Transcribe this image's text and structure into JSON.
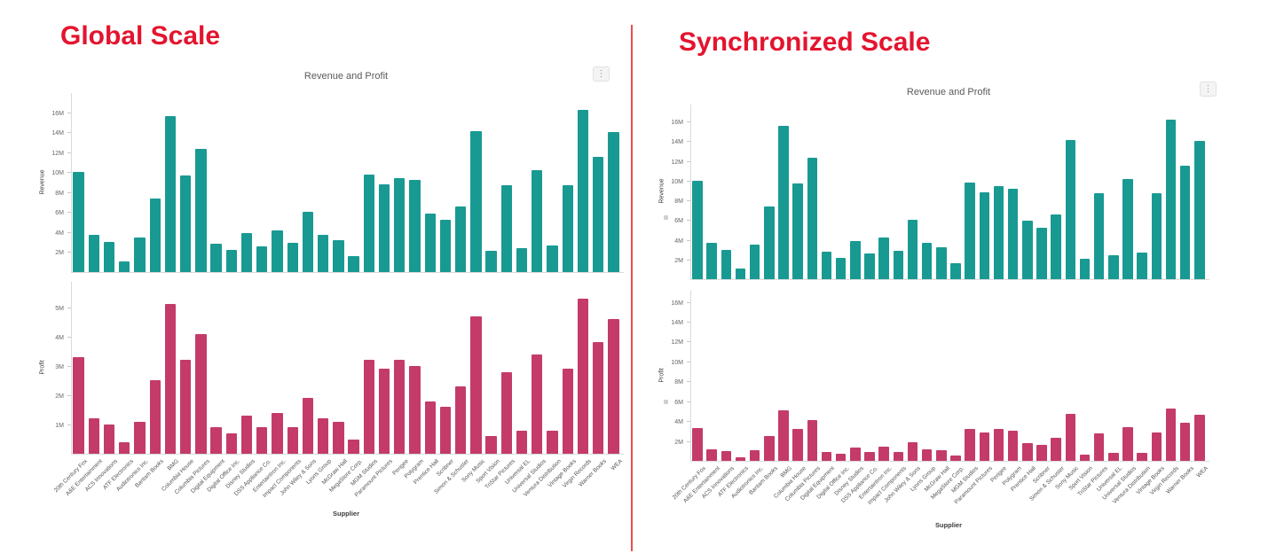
{
  "page": {
    "panels": [
      {
        "id": "global",
        "heading": "Global Scale"
      },
      {
        "id": "synchronized",
        "heading": "Synchronized Scale"
      }
    ]
  },
  "chart": {
    "menu_glyph": "⋮",
    "menu_icon": "kebab-menu-icon",
    "colors": {
      "revenue_bar": "#189a93",
      "profit_bar": "#c43b6a",
      "heading_red": "#e4142e",
      "divider_red": "#ec4c4c",
      "axis_line": "#dadada",
      "tick_text": "#666666"
    }
  },
  "chart_data": [
    {
      "panel": "Global Scale",
      "type": "bar",
      "title": "Revenue and Profit",
      "xlabel": "Supplier",
      "grid": false,
      "legend": "none",
      "categories": [
        "20th Century Fox",
        "A&E Entertainment",
        "ACS Innovations",
        "ATF Electronics",
        "Audiotronics Inc.",
        "Bantam Books",
        "BMG",
        "Columbia House",
        "Columbia Pictures",
        "Digital Equipment",
        "Digital Office Inc.",
        "Disney Studios",
        "DSS Appliance Co.",
        "Entertaintron Inc.",
        "Impact Components",
        "John Wiley & Sons",
        "Lyons Group",
        "McGraw Hall",
        "MegaStore Corp.",
        "MGM Studios",
        "Paramount Pictures",
        "Perigee",
        "Polygram",
        "Prentice Hall",
        "Scribner",
        "Simon & Schuster",
        "Sony Music",
        "Sport Vision",
        "TriStar Pictures",
        "Universal EL",
        "Universal Studios",
        "Ventura Distribution",
        "Vintage Books",
        "Virgin Records",
        "Warner Books",
        "WEA"
      ],
      "series": [
        {
          "name": "Revenue",
          "ylabel": "Revenue",
          "unit": "M",
          "ylim": [
            0,
            18
          ],
          "yticks": [
            "2M",
            "4M",
            "6M",
            "8M",
            "10M",
            "12M",
            "14M",
            "16M"
          ],
          "values": [
            10.0,
            3.7,
            3.0,
            1.1,
            3.5,
            7.4,
            15.6,
            9.7,
            12.3,
            2.8,
            2.2,
            3.9,
            2.6,
            4.2,
            2.9,
            6.0,
            3.7,
            3.2,
            1.6,
            9.8,
            8.8,
            9.4,
            9.2,
            5.9,
            5.2,
            6.6,
            14.1,
            2.1,
            8.7,
            2.4,
            10.2,
            2.7,
            8.7,
            16.2,
            11.5,
            14.0
          ]
        },
        {
          "name": "Profit",
          "ylabel": "Profit",
          "unit": "M",
          "ylim": [
            0,
            5.9
          ],
          "yticks": [
            "1M",
            "2M",
            "3M",
            "4M",
            "5M"
          ],
          "values": [
            3.3,
            1.2,
            1.0,
            0.4,
            1.1,
            2.5,
            5.1,
            3.2,
            4.1,
            0.9,
            0.7,
            1.3,
            0.9,
            1.4,
            0.9,
            1.9,
            1.2,
            1.1,
            0.5,
            3.2,
            2.9,
            3.2,
            3.0,
            1.8,
            1.6,
            2.3,
            4.7,
            0.6,
            2.8,
            0.8,
            3.4,
            0.8,
            2.9,
            5.3,
            3.8,
            4.6
          ]
        }
      ]
    },
    {
      "panel": "Synchronized Scale",
      "type": "bar",
      "title": "Revenue and Profit",
      "xlabel": "Supplier",
      "grid": false,
      "legend": "none",
      "synchronized": true,
      "categories": [
        "20th Century Fox",
        "A&E Entertainment",
        "ACS Innovations",
        "ATF Electronics",
        "Audiotronics Inc.",
        "Bantam Books",
        "BMG",
        "Columbia House",
        "Columbia Pictures",
        "Digital Equipment",
        "Digital Office Inc.",
        "Disney Studios",
        "DSS Appliance Co.",
        "Entertaintron Inc.",
        "Impact Components",
        "John Wiley & Sons",
        "Lyons Group",
        "McGraw Hall",
        "MegaStore Corp.",
        "MGM Studios",
        "Paramount Pictures",
        "Perigee",
        "Polygram",
        "Prentice Hall",
        "Scribner",
        "Simon & Schuster",
        "Sony Music",
        "Sport Vision",
        "TriStar Pictures",
        "Universal EL",
        "Universal Studios",
        "Ventura Distribution",
        "Vintage Books",
        "Virgin Records",
        "Warner Books",
        "WEA"
      ],
      "series": [
        {
          "name": "Revenue",
          "ylabel": "Revenue",
          "unit": "M",
          "ylim": [
            0,
            17.8
          ],
          "yticks": [
            "2M",
            "4M",
            "6M",
            "8M",
            "10M",
            "12M",
            "14M",
            "16M"
          ],
          "values": [
            10.0,
            3.7,
            3.0,
            1.1,
            3.5,
            7.4,
            15.6,
            9.7,
            12.3,
            2.8,
            2.2,
            3.9,
            2.6,
            4.2,
            2.9,
            6.0,
            3.7,
            3.2,
            1.6,
            9.8,
            8.8,
            9.4,
            9.2,
            5.9,
            5.2,
            6.6,
            14.1,
            2.1,
            8.7,
            2.4,
            10.2,
            2.7,
            8.7,
            16.2,
            11.5,
            14.0
          ]
        },
        {
          "name": "Profit",
          "ylabel": "Profit",
          "unit": "M",
          "ylim": [
            0,
            17.2
          ],
          "yticks": [
            "2M",
            "4M",
            "6M",
            "8M",
            "10M",
            "12M",
            "14M",
            "16M"
          ],
          "values": [
            3.3,
            1.2,
            1.0,
            0.4,
            1.1,
            2.5,
            5.1,
            3.2,
            4.1,
            0.9,
            0.7,
            1.3,
            0.9,
            1.4,
            0.9,
            1.9,
            1.2,
            1.1,
            0.5,
            3.2,
            2.9,
            3.2,
            3.0,
            1.8,
            1.6,
            2.3,
            4.7,
            0.6,
            2.8,
            0.8,
            3.4,
            0.8,
            2.9,
            5.3,
            3.8,
            4.6
          ]
        }
      ]
    }
  ]
}
